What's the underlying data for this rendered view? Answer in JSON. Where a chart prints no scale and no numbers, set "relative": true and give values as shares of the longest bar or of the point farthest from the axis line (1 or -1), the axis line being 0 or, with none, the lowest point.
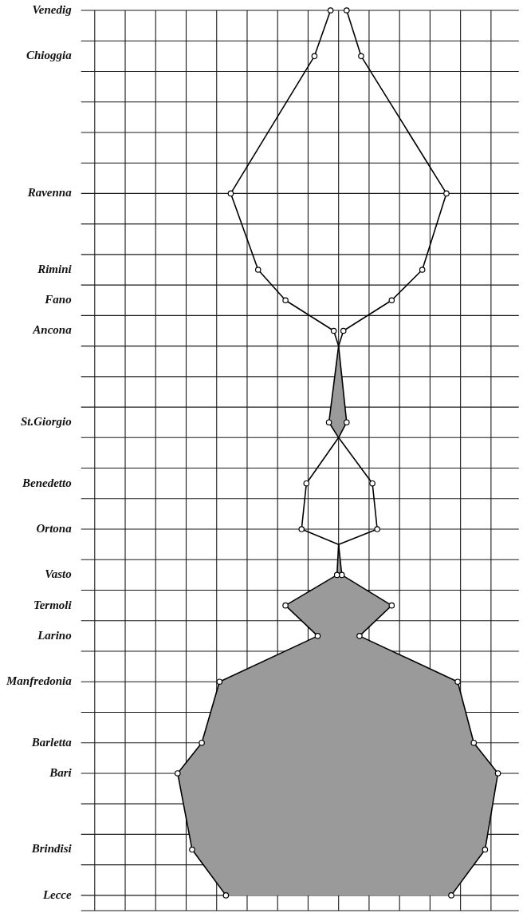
{
  "chart_data": {
    "type": "line",
    "orientation": "horizontal",
    "relative": true,
    "grid": true,
    "marker": "circle",
    "categories": [
      "Venedig",
      null,
      null,
      "Chioggia",
      null,
      null,
      null,
      null,
      null,
      null,
      null,
      null,
      "Ravenna",
      null,
      null,
      null,
      null,
      "Rimini",
      null,
      "Fano",
      null,
      "Ancona",
      null,
      null,
      null,
      null,
      null,
      "St.Giorgio",
      null,
      null,
      null,
      "Benedetto",
      null,
      null,
      "Ortona",
      null,
      null,
      "Vasto",
      null,
      "Termoli",
      null,
      "Larino",
      null,
      null,
      "Manfredonia",
      null,
      null,
      null,
      "Barletta",
      null,
      "Bari",
      null,
      null,
      null,
      null,
      "Brindisi",
      null,
      null,
      "Lecce",
      null
    ],
    "series": [
      {
        "color": "#000000",
        "values": [
          -0.05,
          null,
          null,
          -0.15,
          null,
          null,
          null,
          null,
          null,
          null,
          null,
          null,
          -0.67,
          null,
          null,
          null,
          null,
          -0.5,
          null,
          -0.33,
          null,
          -0.03,
          0,
          null,
          null,
          null,
          null,
          -0.06,
          0,
          null,
          null,
          -0.2,
          null,
          null,
          -0.23,
          0,
          null,
          -0.01,
          null,
          -0.33,
          null,
          -0.13,
          null,
          null,
          -0.74,
          null,
          null,
          null,
          -0.85,
          null,
          -1,
          null,
          null,
          null,
          null,
          -0.91,
          null,
          null,
          -0.7,
          null
        ]
      },
      {
        "color": "#000000",
        "values": [
          0.05,
          null,
          null,
          0.14,
          null,
          null,
          null,
          null,
          null,
          null,
          null,
          null,
          0.67,
          null,
          null,
          null,
          null,
          0.52,
          null,
          0.33,
          null,
          0.03,
          0,
          null,
          null,
          null,
          null,
          0.05,
          0,
          null,
          null,
          0.21,
          null,
          null,
          0.24,
          0,
          null,
          0.02,
          null,
          0.33,
          null,
          0.13,
          null,
          null,
          0.74,
          null,
          null,
          null,
          0.84,
          null,
          0.99,
          null,
          null,
          null,
          null,
          0.91,
          null,
          null,
          0.7,
          null
        ],
        "lower": [
          null,
          null,
          null,
          null,
          null,
          null,
          null,
          null,
          null,
          null,
          null,
          null,
          null,
          null,
          null,
          null,
          null,
          null,
          null,
          null,
          null,
          null,
          0,
          null,
          null,
          null,
          null,
          -0.06,
          0,
          null,
          null,
          null,
          null,
          null,
          null,
          0,
          null,
          -0.01,
          null,
          -0.33,
          null,
          -0.13,
          null,
          null,
          -0.74,
          null,
          null,
          null,
          -0.85,
          null,
          -1,
          null,
          null,
          null,
          null,
          -0.91,
          null,
          null,
          -0.7,
          null
        ],
        "upper": [
          null,
          null,
          null,
          null,
          null,
          null,
          null,
          null,
          null,
          null,
          null,
          null,
          null,
          null,
          null,
          null,
          null,
          null,
          null,
          null,
          null,
          null,
          0,
          null,
          null,
          null,
          null,
          0.05,
          0,
          null,
          null,
          null,
          null,
          null,
          null,
          0,
          null,
          0.02,
          null,
          0.33,
          null,
          0.13,
          null,
          null,
          0.74,
          null,
          null,
          null,
          0.84,
          null,
          0.99,
          null,
          null,
          null,
          null,
          0.91,
          null,
          null,
          0.7,
          null
        ]
      }
    ]
  }
}
